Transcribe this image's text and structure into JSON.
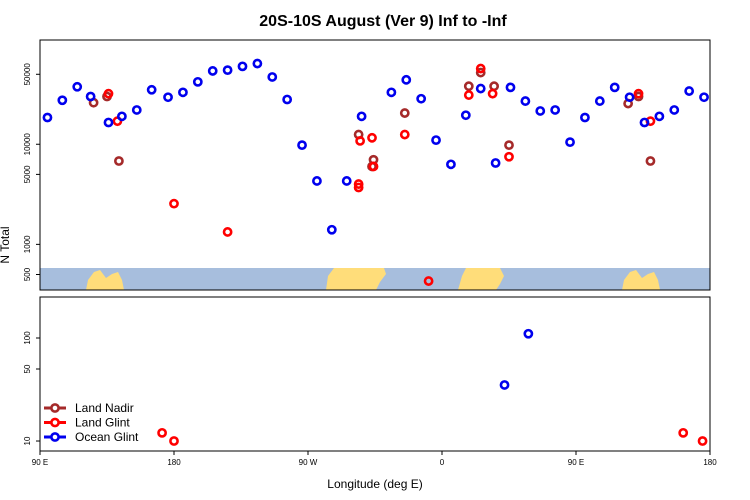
{
  "chart_data": {
    "type": "scatter",
    "title": "20S-10S August (Ver 9)   Inf to -Inf",
    "xlabel": "Longitude (deg E)",
    "ylabel": "N Total",
    "x_ticks": [
      {
        "value": 90,
        "label": "90 E"
      },
      {
        "value": 180,
        "label": "180"
      },
      {
        "value": 270,
        "label": "90 W"
      },
      {
        "value": 360,
        "label": "0"
      },
      {
        "value": 450,
        "label": "90 E"
      },
      {
        "value": 540,
        "label": "180"
      }
    ],
    "xlim": [
      90,
      540
    ],
    "upper_panel": {
      "y_scale": "log",
      "ylim": [
        350,
        110000
      ],
      "y_ticks": [
        {
          "value": 500,
          "label": "500"
        },
        {
          "value": 1000,
          "label": "1000"
        },
        {
          "value": 5000,
          "label": "5000"
        },
        {
          "value": 10000,
          "label": "10000"
        },
        {
          "value": 50000,
          "label": "50000"
        }
      ]
    },
    "lower_panel": {
      "y_scale": "log",
      "ylim": [
        8,
        250
      ],
      "y_ticks": [
        {
          "value": 10,
          "label": "10"
        },
        {
          "value": 50,
          "label": "50"
        },
        {
          "value": 100,
          "label": "100"
        }
      ]
    },
    "colors": {
      "land_nadir": "#a52a2a",
      "land_glint": "#ff0000",
      "ocean_glint": "#0000ee",
      "ocean_band": "#a7bedd",
      "land_band": "#ffdd7a"
    },
    "series": [
      {
        "name": "Land Nadir",
        "color_key": "land_nadir",
        "points": [
          [
            126,
            26000
          ],
          [
            135,
            30000
          ],
          [
            143,
            6800
          ],
          [
            304,
            12500
          ],
          [
            314,
            7000
          ],
          [
            313,
            6000
          ],
          [
            335,
            20500
          ],
          [
            378,
            38000
          ],
          [
            386,
            52000
          ],
          [
            395,
            38000
          ],
          [
            405,
            9800
          ],
          [
            485,
            25500
          ],
          [
            492,
            30000
          ],
          [
            500,
            6800
          ]
        ]
      },
      {
        "name": "Land Glint",
        "color_key": "land_glint",
        "points": [
          [
            136,
            32000
          ],
          [
            142,
            17000
          ],
          [
            180,
            2550
          ],
          [
            216,
            1330
          ],
          [
            304,
            4000
          ],
          [
            304,
            3700
          ],
          [
            314,
            6000
          ],
          [
            305,
            10800
          ],
          [
            313,
            11600
          ],
          [
            335,
            12500
          ],
          [
            351,
            430
          ],
          [
            378,
            31000
          ],
          [
            386,
            57000
          ],
          [
            394,
            32000
          ],
          [
            405,
            7500
          ],
          [
            492,
            32000
          ],
          [
            500,
            17000
          ],
          [
            180,
            10
          ],
          [
            172,
            12
          ],
          [
            522,
            12
          ],
          [
            535,
            10
          ]
        ]
      },
      {
        "name": "Ocean Glint",
        "color_key": "ocean_glint",
        "points": [
          [
            95,
            18500
          ],
          [
            105,
            27500
          ],
          [
            115,
            37500
          ],
          [
            124,
            30000
          ],
          [
            136,
            16500
          ],
          [
            145,
            19000
          ],
          [
            155,
            22000
          ],
          [
            165,
            35000
          ],
          [
            176,
            29500
          ],
          [
            186,
            33000
          ],
          [
            196,
            42000
          ],
          [
            206,
            54000
          ],
          [
            216,
            55000
          ],
          [
            226,
            60000
          ],
          [
            236,
            64000
          ],
          [
            246,
            47000
          ],
          [
            256,
            28000
          ],
          [
            266,
            9800
          ],
          [
            276,
            4300
          ],
          [
            286,
            1400
          ],
          [
            296,
            4300
          ],
          [
            306,
            19000
          ],
          [
            326,
            33000
          ],
          [
            336,
            44000
          ],
          [
            346,
            28500
          ],
          [
            356,
            11000
          ],
          [
            366,
            6300
          ],
          [
            376,
            19500
          ],
          [
            386,
            36000
          ],
          [
            396,
            6500
          ],
          [
            406,
            37000
          ],
          [
            416,
            27000
          ],
          [
            426,
            21500
          ],
          [
            436,
            22000
          ],
          [
            446,
            10500
          ],
          [
            456,
            18500
          ],
          [
            466,
            27000
          ],
          [
            476,
            37000
          ],
          [
            486,
            29500
          ],
          [
            496,
            16500
          ],
          [
            506,
            19000
          ],
          [
            516,
            22000
          ],
          [
            526,
            34000
          ],
          [
            536,
            29500
          ],
          [
            402,
            35
          ],
          [
            418,
            110
          ]
        ]
      }
    ],
    "legend": {
      "placement": "bottom-left",
      "entries": [
        "Land Nadir",
        "Land Glint",
        "Ocean Glint"
      ]
    },
    "grid": false
  }
}
